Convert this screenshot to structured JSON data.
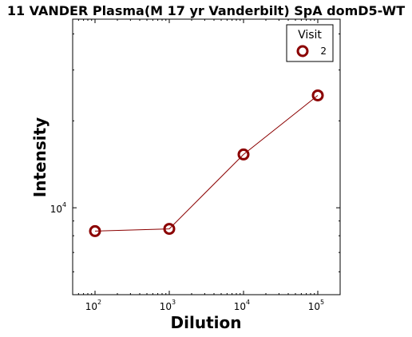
{
  "chart_data": {
    "type": "line",
    "title": "11 VANDER Plasma(M 17 yr Vanderbilt) SpA domD5-WT",
    "xlabel": "Dilution",
    "ylabel": "Intensity",
    "xscale": "log",
    "yscale": "log",
    "xlim": [
      50,
      200000
    ],
    "ylim": [
      5000,
      45000
    ],
    "x_ticks": [
      {
        "base": "10",
        "exp": "2",
        "value": 100
      },
      {
        "base": "10",
        "exp": "3",
        "value": 1000
      },
      {
        "base": "10",
        "exp": "4",
        "value": 10000
      },
      {
        "base": "10",
        "exp": "5",
        "value": 100000
      }
    ],
    "y_ticks": [
      {
        "base": "10",
        "exp": "4",
        "value": 10000
      }
    ],
    "grid": false,
    "legend": {
      "title": "Visit",
      "position": "top-right"
    },
    "series": [
      {
        "name": "2",
        "color": "#8b0000",
        "marker": "open-circle",
        "x": [
          100,
          1000,
          10000,
          100000
        ],
        "y": [
          8300,
          8450,
          15300,
          24500
        ]
      }
    ]
  }
}
